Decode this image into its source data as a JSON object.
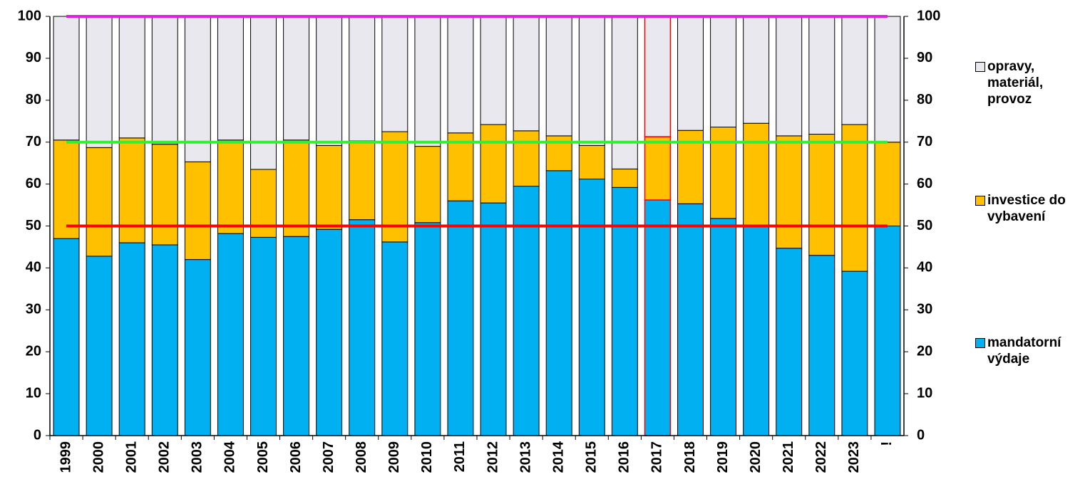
{
  "chart_data": {
    "type": "stacked_bar",
    "categories": [
      "1999",
      "2000",
      "2001",
      "2002",
      "2003",
      "2004",
      "2005",
      "2006",
      "2007",
      "2008",
      "2009",
      "2010",
      "2011",
      "2012",
      "2013",
      "2014",
      "2015",
      "2016",
      "2017",
      "2018",
      "2019",
      "2020",
      "2021",
      "2022",
      "2023",
      "!"
    ],
    "series": [
      {
        "name": "mandatorní výdaje",
        "color": "#00b0f0",
        "values": [
          47,
          42.8,
          46,
          45.5,
          42,
          48.2,
          47.3,
          47.5,
          49.2,
          51.5,
          46.2,
          50.8,
          56,
          55.5,
          59.5,
          63.2,
          61.2,
          59.2,
          56.2,
          55.3,
          51.8,
          50,
          44.7,
          43,
          39.2,
          50
        ]
      },
      {
        "name": "investice do vybavení",
        "color": "#ffc000",
        "values": [
          23.5,
          25.9,
          25,
          24,
          23.3,
          22.3,
          16.2,
          23,
          20,
          18.8,
          26.3,
          18.2,
          16.2,
          18.7,
          13.2,
          8.3,
          8,
          4.4,
          15.1,
          17.5,
          21.8,
          24.5,
          26.8,
          28.9,
          35,
          20
        ]
      },
      {
        "name": "opravy, materiál, provoz",
        "color": "#e8e8ee",
        "values": [
          29.5,
          31.3,
          29,
          30.5,
          34.7,
          29.5,
          36.5,
          29.5,
          30.8,
          29.7,
          27.5,
          31,
          27.8,
          25.8,
          27.3,
          28.5,
          30.8,
          36.4,
          28.7,
          27.2,
          26.4,
          25.5,
          28.5,
          28.1,
          25.8,
          30
        ]
      }
    ],
    "ylim": [
      0,
      100
    ],
    "yticks": [
      0,
      10,
      20,
      30,
      40,
      50,
      60,
      70,
      80,
      90,
      100
    ],
    "y2lim": [
      0,
      100
    ],
    "y2ticks": [
      0,
      10,
      20,
      30,
      40,
      50,
      60,
      70,
      80,
      90,
      100
    ],
    "reference_lines": [
      {
        "value": 100,
        "color": "#e020e0"
      },
      {
        "value": 70,
        "color": "#33ee33"
      },
      {
        "value": 50,
        "color": "#ff0000"
      }
    ],
    "highlight": {
      "category_index": 18,
      "color": "#ff0000"
    },
    "legend": "right"
  }
}
